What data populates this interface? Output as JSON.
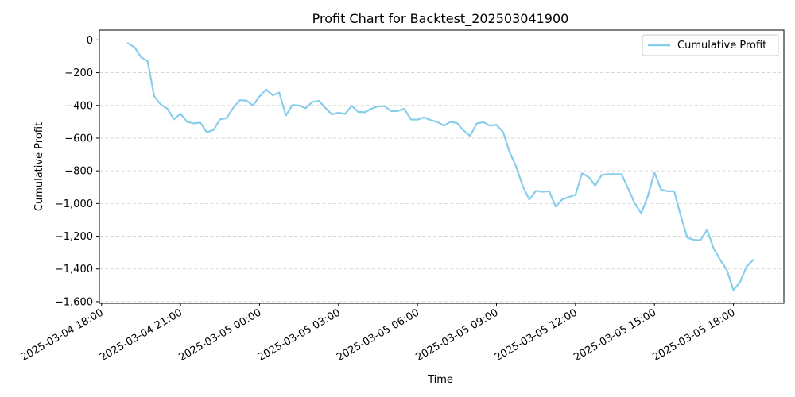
{
  "chart_data": {
    "type": "line",
    "title": "Profit Chart for Backtest_202503041900",
    "xlabel": "Time",
    "ylabel": "Cumulative Profit",
    "xlim": [
      "2025-03-04 17:55",
      "2025-03-05 19:55"
    ],
    "ylim": [
      -1610,
      60
    ],
    "x_ticks": [
      "2025-03-04 18:00",
      "2025-03-04 21:00",
      "2025-03-05 00:00",
      "2025-03-05 03:00",
      "2025-03-05 06:00",
      "2025-03-05 09:00",
      "2025-03-05 12:00",
      "2025-03-05 15:00",
      "2025-03-05 18:00"
    ],
    "y_ticks": [
      0,
      -200,
      -400,
      -600,
      -800,
      -1000,
      -1200,
      -1400,
      -1600
    ],
    "y_tick_labels": [
      "0",
      "−200",
      "−400",
      "−600",
      "−800",
      "−1,000",
      "−1,200",
      "−1,400",
      "−1,600"
    ],
    "grid": "y-dashed",
    "legend_position": "top-right",
    "series": [
      {
        "name": "Cumulative Profit",
        "color": "#87CEEB",
        "x": [
          "2025-03-04 19:00",
          "2025-03-04 19:15",
          "2025-03-04 19:30",
          "2025-03-04 19:45",
          "2025-03-04 20:00",
          "2025-03-04 20:15",
          "2025-03-04 20:30",
          "2025-03-04 20:45",
          "2025-03-04 21:00",
          "2025-03-04 21:15",
          "2025-03-04 21:30",
          "2025-03-04 21:45",
          "2025-03-04 22:00",
          "2025-03-04 22:15",
          "2025-03-04 22:30",
          "2025-03-04 22:45",
          "2025-03-04 23:00",
          "2025-03-04 23:15",
          "2025-03-04 23:30",
          "2025-03-04 23:45",
          "2025-03-05 00:00",
          "2025-03-05 00:15",
          "2025-03-05 00:30",
          "2025-03-05 00:45",
          "2025-03-05 01:00",
          "2025-03-05 01:15",
          "2025-03-05 01:30",
          "2025-03-05 01:45",
          "2025-03-05 02:00",
          "2025-03-05 02:15",
          "2025-03-05 02:30",
          "2025-03-05 02:45",
          "2025-03-05 03:00",
          "2025-03-05 03:15",
          "2025-03-05 03:30",
          "2025-03-05 03:45",
          "2025-03-05 04:00",
          "2025-03-05 04:15",
          "2025-03-05 04:30",
          "2025-03-05 04:45",
          "2025-03-05 05:00",
          "2025-03-05 05:15",
          "2025-03-05 05:30",
          "2025-03-05 05:45",
          "2025-03-05 06:00",
          "2025-03-05 06:15",
          "2025-03-05 06:30",
          "2025-03-05 06:45",
          "2025-03-05 07:00",
          "2025-03-05 07:15",
          "2025-03-05 07:30",
          "2025-03-05 07:45",
          "2025-03-05 08:00",
          "2025-03-05 08:15",
          "2025-03-05 08:30",
          "2025-03-05 08:45",
          "2025-03-05 09:00",
          "2025-03-05 09:15",
          "2025-03-05 09:30",
          "2025-03-05 09:45",
          "2025-03-05 10:00",
          "2025-03-05 10:15",
          "2025-03-05 10:30",
          "2025-03-05 10:45",
          "2025-03-05 11:00",
          "2025-03-05 11:15",
          "2025-03-05 11:30",
          "2025-03-05 11:45",
          "2025-03-05 12:00",
          "2025-03-05 12:15",
          "2025-03-05 12:30",
          "2025-03-05 12:45",
          "2025-03-05 13:00",
          "2025-03-05 13:15",
          "2025-03-05 13:30",
          "2025-03-05 13:45",
          "2025-03-05 14:00",
          "2025-03-05 14:15",
          "2025-03-05 14:30",
          "2025-03-05 14:45",
          "2025-03-05 15:00",
          "2025-03-05 15:15",
          "2025-03-05 15:30",
          "2025-03-05 15:45",
          "2025-03-05 16:00",
          "2025-03-05 16:15",
          "2025-03-05 16:30",
          "2025-03-05 16:45",
          "2025-03-05 17:00",
          "2025-03-05 17:15",
          "2025-03-05 17:30",
          "2025-03-05 17:45",
          "2025-03-05 18:00",
          "2025-03-05 18:15",
          "2025-03-05 18:30",
          "2025-03-05 18:45"
        ],
        "values": [
          -20,
          -45,
          -105,
          -130,
          -345,
          -395,
          -420,
          -485,
          -450,
          -500,
          -510,
          -505,
          -565,
          -550,
          -485,
          -478,
          -415,
          -368,
          -370,
          -400,
          -345,
          -302,
          -338,
          -322,
          -462,
          -398,
          -400,
          -417,
          -380,
          -372,
          -415,
          -455,
          -445,
          -452,
          -402,
          -440,
          -442,
          -420,
          -405,
          -405,
          -435,
          -434,
          -420,
          -486,
          -487,
          -473,
          -490,
          -500,
          -524,
          -500,
          -508,
          -553,
          -587,
          -510,
          -502,
          -524,
          -518,
          -563,
          -685,
          -775,
          -895,
          -975,
          -922,
          -928,
          -925,
          -1018,
          -975,
          -960,
          -948,
          -815,
          -838,
          -890,
          -825,
          -820,
          -820,
          -820,
          -908,
          -998,
          -1060,
          -955,
          -810,
          -915,
          -925,
          -925,
          -1075,
          -1210,
          -1222,
          -1225,
          -1160,
          -1275,
          -1345,
          -1405,
          -1530,
          -1482,
          -1385,
          -1345
        ]
      }
    ]
  }
}
